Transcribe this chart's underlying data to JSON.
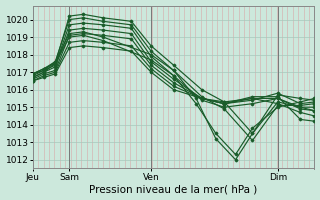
{
  "title": "Pression niveau de la mer( hPa )",
  "bg_color": "#cce8dc",
  "line_color": "#1a5c2a",
  "ylim": [
    1011.5,
    1020.8
  ],
  "yticks": [
    1012,
    1013,
    1014,
    1015,
    1016,
    1017,
    1018,
    1019,
    1020
  ],
  "xtick_labels": [
    "Jeu",
    "Sam",
    "Ven",
    "Dim"
  ],
  "xtick_positions": [
    0.0,
    0.13,
    0.42,
    0.87
  ],
  "n_vlines": 52,
  "series": [
    {
      "x": [
        0.0,
        0.04,
        0.08,
        0.13,
        0.18,
        0.25,
        0.35,
        0.42,
        0.5,
        0.6,
        0.68,
        0.78,
        0.87,
        0.95,
        1.0
      ],
      "y": [
        1016.7,
        1017.0,
        1017.5,
        1020.2,
        1020.3,
        1020.1,
        1019.9,
        1018.5,
        1017.4,
        1016.0,
        1015.3,
        1013.5,
        1015.3,
        1015.0,
        1014.8
      ]
    },
    {
      "x": [
        0.0,
        0.04,
        0.08,
        0.13,
        0.18,
        0.25,
        0.35,
        0.42,
        0.5,
        0.6,
        0.68,
        0.78,
        0.87,
        0.95,
        1.0
      ],
      "y": [
        1016.8,
        1017.1,
        1017.6,
        1020.0,
        1020.1,
        1019.9,
        1019.7,
        1018.2,
        1017.1,
        1015.6,
        1014.9,
        1013.1,
        1015.1,
        1015.1,
        1015.2
      ]
    },
    {
      "x": [
        0.0,
        0.04,
        0.08,
        0.13,
        0.18,
        0.25,
        0.35,
        0.42,
        0.5,
        0.6,
        0.68,
        0.78,
        0.87,
        0.95,
        1.0
      ],
      "y": [
        1016.9,
        1017.1,
        1017.4,
        1019.7,
        1019.8,
        1019.7,
        1019.5,
        1017.9,
        1016.8,
        1015.4,
        1015.0,
        1015.2,
        1015.5,
        1015.0,
        1015.0
      ]
    },
    {
      "x": [
        0.0,
        0.04,
        0.08,
        0.13,
        0.18,
        0.25,
        0.35,
        0.42,
        0.5,
        0.6,
        0.68,
        0.78,
        0.87,
        0.95,
        1.0
      ],
      "y": [
        1016.7,
        1017.0,
        1017.3,
        1019.4,
        1019.5,
        1019.4,
        1019.2,
        1017.6,
        1016.6,
        1015.5,
        1015.2,
        1015.4,
        1015.8,
        1015.2,
        1015.3
      ]
    },
    {
      "x": [
        0.0,
        0.04,
        0.08,
        0.13,
        0.18,
        0.25,
        0.35,
        0.42,
        0.5,
        0.6,
        0.68,
        0.78,
        0.87,
        0.95,
        1.0
      ],
      "y": [
        1016.6,
        1016.9,
        1017.1,
        1019.1,
        1019.2,
        1019.1,
        1018.9,
        1017.4,
        1016.4,
        1015.5,
        1015.2,
        1015.5,
        1015.5,
        1014.9,
        1014.8
      ]
    },
    {
      "x": [
        0.0,
        0.04,
        0.08,
        0.13,
        0.18,
        0.25,
        0.35,
        0.42,
        0.5,
        0.6,
        0.68,
        0.78,
        0.87,
        0.95,
        1.0
      ],
      "y": [
        1016.5,
        1016.8,
        1017.0,
        1018.7,
        1018.8,
        1018.7,
        1018.5,
        1017.2,
        1016.2,
        1015.5,
        1015.3,
        1015.5,
        1015.2,
        1014.7,
        1014.5
      ]
    },
    {
      "x": [
        0.0,
        0.04,
        0.08,
        0.13,
        0.18,
        0.25,
        0.35,
        0.42,
        0.5,
        0.6,
        0.68,
        0.78,
        0.87,
        0.95,
        1.0
      ],
      "y": [
        1016.5,
        1016.7,
        1016.9,
        1018.4,
        1018.5,
        1018.4,
        1018.2,
        1017.0,
        1016.0,
        1015.5,
        1015.2,
        1015.6,
        1015.6,
        1014.3,
        1014.2
      ]
    },
    {
      "x": [
        0.0,
        0.04,
        0.08,
        0.13,
        0.18,
        0.25,
        0.42,
        0.5,
        0.58,
        0.65,
        0.72,
        0.78,
        0.87,
        0.95,
        1.0
      ],
      "y": [
        1016.9,
        1017.2,
        1017.6,
        1019.2,
        1019.3,
        1019.0,
        1018.0,
        1017.1,
        1015.5,
        1013.2,
        1012.0,
        1013.5,
        1015.7,
        1015.5,
        1015.4
      ]
    },
    {
      "x": [
        0.0,
        0.04,
        0.08,
        0.13,
        0.18,
        0.25,
        0.42,
        0.5,
        0.58,
        0.65,
        0.72,
        0.78,
        0.87,
        0.95,
        1.0
      ],
      "y": [
        1016.9,
        1017.2,
        1017.5,
        1019.0,
        1019.1,
        1018.8,
        1017.7,
        1016.8,
        1015.2,
        1013.5,
        1012.3,
        1013.8,
        1015.0,
        1015.3,
        1015.5
      ]
    }
  ]
}
